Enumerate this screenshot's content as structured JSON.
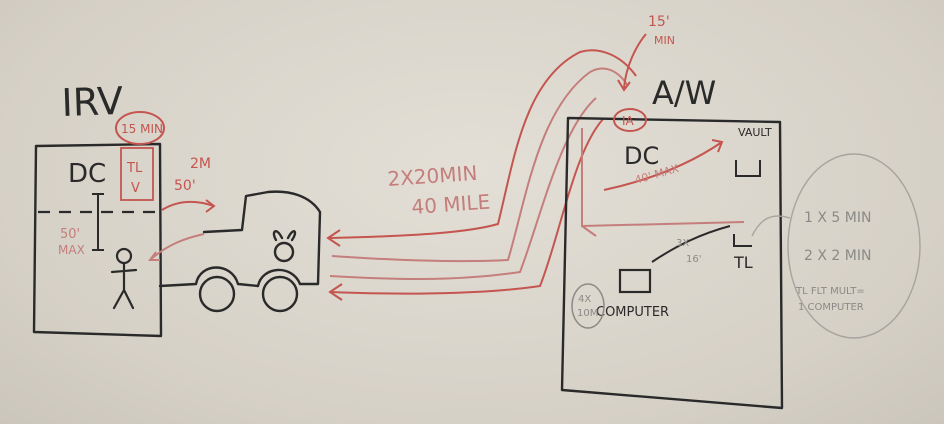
{
  "left_site": {
    "label": "IRV",
    "inner_label": "DC",
    "time_note": "15 MIN",
    "tl_stack": [
      "TL",
      "V"
    ],
    "cable_note": [
      "2M",
      "50'"
    ],
    "height_note": [
      "50'",
      "MAX"
    ]
  },
  "right_site": {
    "label": "A/W",
    "inner_label": "DC",
    "ia_label": "IA",
    "top_note": [
      "15'",
      "MIN"
    ],
    "run_note": "40' MAX",
    "vault_label": "VAULT",
    "tl_label": "TL",
    "computer_label": "COMPUTER",
    "cable_note": [
      "3X",
      "16'"
    ],
    "side_note": [
      "4X",
      "10M"
    ],
    "bubble_notes": [
      "1 X 5 MIN",
      "2 X 2 MIN",
      "TL FLT MULT=",
      "1 COMPUTER"
    ]
  },
  "route": {
    "duration_note": "2X20MIN",
    "distance_note": "40 MILE"
  },
  "colors": {
    "black_marker": "#2a2a2a",
    "red_marker": "#c4554f",
    "pink_marker": "#c47e7b",
    "gray_marker": "#8a8a86"
  }
}
